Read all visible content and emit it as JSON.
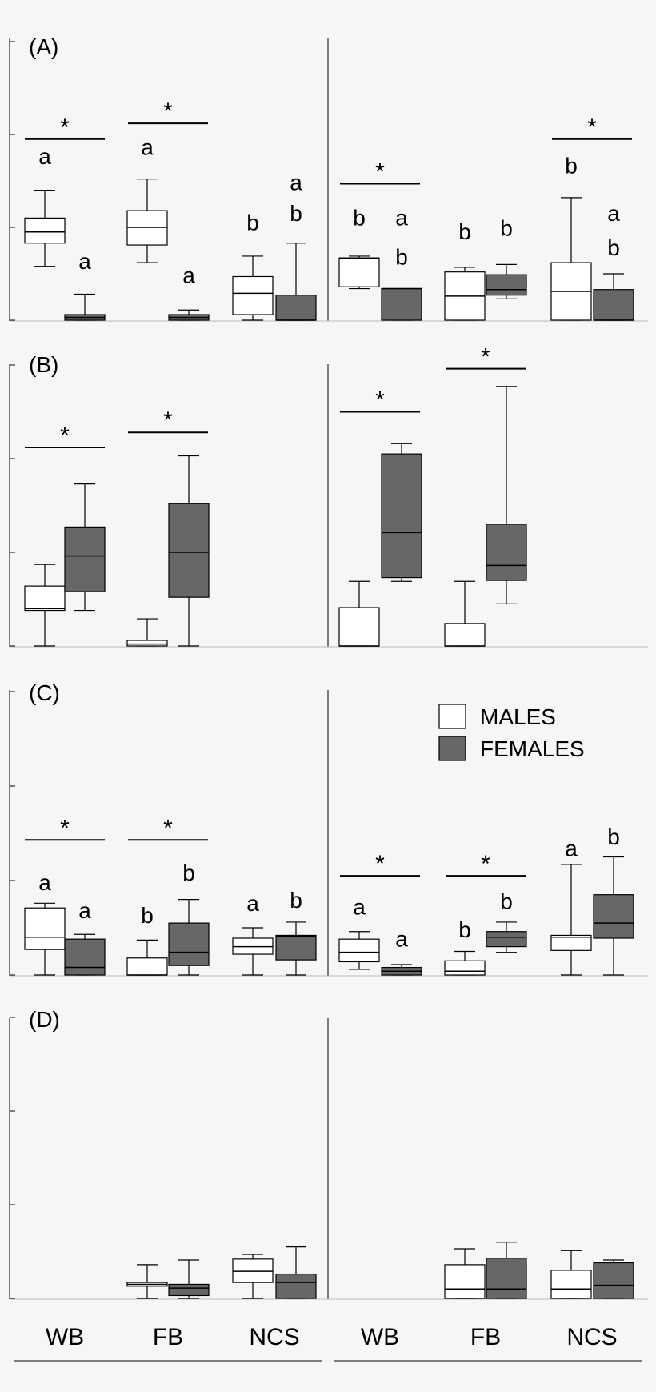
{
  "legend": {
    "placement": "top-right of panel C",
    "items": [
      {
        "label": "MALES",
        "color": "#ffffff"
      },
      {
        "label": "FEMALES",
        "color": "#676767"
      }
    ]
  },
  "x_groups": {
    "left": [
      "WB",
      "FB",
      "NCS"
    ],
    "right": [
      "WB",
      "FB",
      "NCS"
    ]
  },
  "chart_data": [
    {
      "type": "box",
      "panel_label": "(A)",
      "ylim": [
        0,
        3
      ],
      "grid": false,
      "boxes": [
        {
          "side": "left",
          "group": "WB",
          "sex": "MALES",
          "min": 0.58,
          "q1": 0.83,
          "median": 0.95,
          "q3": 1.1,
          "max": 1.4
        },
        {
          "side": "left",
          "group": "WB",
          "sex": "FEMALES",
          "min": 0.0,
          "q1": 0.0,
          "median": 0.03,
          "q3": 0.06,
          "max": 0.28
        },
        {
          "side": "left",
          "group": "FB",
          "sex": "MALES",
          "min": 0.62,
          "q1": 0.81,
          "median": 1.0,
          "q3": 1.18,
          "max": 1.52
        },
        {
          "side": "left",
          "group": "FB",
          "sex": "FEMALES",
          "min": 0.0,
          "q1": 0.0,
          "median": 0.03,
          "q3": 0.06,
          "max": 0.11
        },
        {
          "side": "left",
          "group": "NCS",
          "sex": "MALES",
          "min": 0.0,
          "q1": 0.06,
          "median": 0.29,
          "q3": 0.47,
          "max": 0.69
        },
        {
          "side": "left",
          "group": "NCS",
          "sex": "FEMALES",
          "min": 0.0,
          "q1": 0.0,
          "median": 0.0,
          "q3": 0.27,
          "max": 0.83
        },
        {
          "side": "right",
          "group": "WB",
          "sex": "MALES",
          "min": 0.34,
          "q1": 0.36,
          "median": 0.67,
          "q3": 0.67,
          "max": 0.69
        },
        {
          "side": "right",
          "group": "WB",
          "sex": "FEMALES",
          "min": 0.0,
          "q1": 0.0,
          "median": 0.34,
          "q3": 0.34,
          "max": 0.34
        },
        {
          "side": "right",
          "group": "FB",
          "sex": "MALES",
          "min": 0.0,
          "q1": 0.0,
          "median": 0.26,
          "q3": 0.52,
          "max": 0.57
        },
        {
          "side": "right",
          "group": "FB",
          "sex": "FEMALES",
          "min": 0.23,
          "q1": 0.27,
          "median": 0.33,
          "q3": 0.49,
          "max": 0.6
        },
        {
          "side": "right",
          "group": "NCS",
          "sex": "MALES",
          "min": 0.0,
          "q1": 0.0,
          "median": 0.31,
          "q3": 0.62,
          "max": 1.32
        },
        {
          "side": "right",
          "group": "NCS",
          "sex": "FEMALES",
          "min": 0.0,
          "q1": 0.0,
          "median": 0.0,
          "q3": 0.33,
          "max": 0.5
        }
      ],
      "significance": [
        {
          "side": "left",
          "group": "WB",
          "label": "*",
          "y": 1.95
        },
        {
          "side": "left",
          "group": "FB",
          "label": "*",
          "y": 2.12
        },
        {
          "side": "right",
          "group": "WB",
          "label": "*",
          "y": 1.47
        },
        {
          "side": "right",
          "group": "NCS",
          "label": "*",
          "y": 1.95
        }
      ],
      "letters": [
        {
          "side": "left",
          "group": "WB",
          "sex": "MALES",
          "text": "a",
          "y": 1.68
        },
        {
          "side": "left",
          "group": "WB",
          "sex": "FEMALES",
          "text": "a",
          "y": 0.55
        },
        {
          "side": "left",
          "group": "FB",
          "sex": "MALES",
          "text": "a",
          "y": 1.78
        },
        {
          "side": "left",
          "group": "FB",
          "sex": "FEMALES",
          "text": "a",
          "y": 0.4
        },
        {
          "side": "left",
          "group": "NCS",
          "sex": "MALES",
          "text": "b",
          "y": 0.97
        },
        {
          "side": "left",
          "group": "NCS",
          "sex": "FEMALES",
          "text": "a",
          "y": 1.4
        },
        {
          "side": "left",
          "group": "NCS",
          "sex": "FEMALES",
          "text": "b",
          "y": 1.07
        },
        {
          "side": "right",
          "group": "WB",
          "sex": "MALES",
          "text": "b",
          "y": 1.02
        },
        {
          "side": "right",
          "group": "WB",
          "sex": "FEMALES",
          "text": "a",
          "y": 1.02
        },
        {
          "side": "right",
          "group": "WB",
          "sex": "FEMALES",
          "text": "b",
          "y": 0.6
        },
        {
          "side": "right",
          "group": "FB",
          "sex": "MALES",
          "text": "b",
          "y": 0.87
        },
        {
          "side": "right",
          "group": "FB",
          "sex": "FEMALES",
          "text": "b",
          "y": 0.91
        },
        {
          "side": "right",
          "group": "NCS",
          "sex": "MALES",
          "text": "b",
          "y": 1.58
        },
        {
          "side": "right",
          "group": "NCS",
          "sex": "FEMALES",
          "text": "a",
          "y": 1.07
        },
        {
          "side": "right",
          "group": "NCS",
          "sex": "FEMALES",
          "text": "b",
          "y": 0.7
        }
      ]
    },
    {
      "type": "box",
      "panel_label": "(B)",
      "ylim": [
        0,
        3
      ],
      "grid": false,
      "boxes": [
        {
          "side": "left",
          "group": "WB",
          "sex": "MALES",
          "min": 0.0,
          "q1": 0.38,
          "median": 0.4,
          "q3": 0.64,
          "max": 0.87
        },
        {
          "side": "left",
          "group": "WB",
          "sex": "FEMALES",
          "min": 0.38,
          "q1": 0.58,
          "median": 0.96,
          "q3": 1.27,
          "max": 1.73
        },
        {
          "side": "left",
          "group": "FB",
          "sex": "MALES",
          "min": 0.0,
          "q1": 0.0,
          "median": 0.02,
          "q3": 0.06,
          "max": 0.29
        },
        {
          "side": "left",
          "group": "FB",
          "sex": "FEMALES",
          "min": 0.0,
          "q1": 0.52,
          "median": 1.0,
          "q3": 1.52,
          "max": 2.03
        },
        {
          "side": "right",
          "group": "WB",
          "sex": "MALES",
          "min": 0.0,
          "q1": 0.0,
          "median": 0.0,
          "q3": 0.41,
          "max": 0.69
        },
        {
          "side": "right",
          "group": "WB",
          "sex": "FEMALES",
          "min": 0.69,
          "q1": 0.73,
          "median": 1.21,
          "q3": 2.05,
          "max": 2.16
        },
        {
          "side": "right",
          "group": "FB",
          "sex": "MALES",
          "min": 0.0,
          "q1": 0.0,
          "median": 0.0,
          "q3": 0.24,
          "max": 0.69
        },
        {
          "side": "right",
          "group": "FB",
          "sex": "FEMALES",
          "min": 0.45,
          "q1": 0.7,
          "median": 0.86,
          "q3": 1.3,
          "max": 2.77
        }
      ],
      "significance": [
        {
          "side": "left",
          "group": "WB",
          "label": "*",
          "y": 2.12
        },
        {
          "side": "left",
          "group": "FB",
          "label": "*",
          "y": 2.28
        },
        {
          "side": "right",
          "group": "WB",
          "label": "*",
          "y": 2.5
        },
        {
          "side": "right",
          "group": "FB",
          "label": "*",
          "y": 2.96
        }
      ],
      "letters": []
    },
    {
      "type": "box",
      "panel_label": "(C)",
      "ylim": [
        0,
        3
      ],
      "grid": false,
      "boxes": [
        {
          "side": "left",
          "group": "WB",
          "sex": "MALES",
          "min": 0.0,
          "q1": 0.27,
          "median": 0.4,
          "q3": 0.71,
          "max": 0.76
        },
        {
          "side": "left",
          "group": "WB",
          "sex": "FEMALES",
          "min": 0.0,
          "q1": 0.0,
          "median": 0.08,
          "q3": 0.38,
          "max": 0.43
        },
        {
          "side": "left",
          "group": "FB",
          "sex": "MALES",
          "min": 0.0,
          "q1": 0.0,
          "median": 0.0,
          "q3": 0.18,
          "max": 0.37
        },
        {
          "side": "left",
          "group": "FB",
          "sex": "FEMALES",
          "min": 0.0,
          "q1": 0.1,
          "median": 0.24,
          "q3": 0.55,
          "max": 0.8
        },
        {
          "side": "left",
          "group": "NCS",
          "sex": "MALES",
          "min": 0.0,
          "q1": 0.22,
          "median": 0.3,
          "q3": 0.39,
          "max": 0.5
        },
        {
          "side": "left",
          "group": "NCS",
          "sex": "FEMALES",
          "min": 0.0,
          "q1": 0.16,
          "median": 0.41,
          "q3": 0.42,
          "max": 0.56
        },
        {
          "side": "right",
          "group": "WB",
          "sex": "MALES",
          "min": 0.06,
          "q1": 0.14,
          "median": 0.24,
          "q3": 0.38,
          "max": 0.46
        },
        {
          "side": "right",
          "group": "WB",
          "sex": "FEMALES",
          "min": 0.0,
          "q1": 0.0,
          "median": 0.04,
          "q3": 0.08,
          "max": 0.11
        },
        {
          "side": "right",
          "group": "FB",
          "sex": "MALES",
          "min": 0.0,
          "q1": 0.0,
          "median": 0.04,
          "q3": 0.15,
          "max": 0.25
        },
        {
          "side": "right",
          "group": "FB",
          "sex": "FEMALES",
          "min": 0.24,
          "q1": 0.3,
          "median": 0.4,
          "q3": 0.46,
          "max": 0.56
        },
        {
          "side": "right",
          "group": "NCS",
          "sex": "MALES",
          "min": 0.0,
          "q1": 0.26,
          "median": 0.4,
          "q3": 0.42,
          "max": 1.17
        },
        {
          "side": "right",
          "group": "NCS",
          "sex": "FEMALES",
          "min": 0.0,
          "q1": 0.39,
          "median": 0.55,
          "q3": 0.85,
          "max": 1.25
        }
      ],
      "significance": [
        {
          "side": "left",
          "group": "WB",
          "label": "*",
          "y": 1.43
        },
        {
          "side": "left",
          "group": "FB",
          "label": "*",
          "y": 1.43
        },
        {
          "side": "right",
          "group": "WB",
          "label": "*",
          "y": 1.05
        },
        {
          "side": "right",
          "group": "FB",
          "label": "*",
          "y": 1.05
        }
      ],
      "letters": [
        {
          "side": "left",
          "group": "WB",
          "sex": "MALES",
          "text": "a",
          "y": 0.9
        },
        {
          "side": "left",
          "group": "WB",
          "sex": "FEMALES",
          "text": "a",
          "y": 0.6
        },
        {
          "side": "left",
          "group": "FB",
          "sex": "MALES",
          "text": "b",
          "y": 0.55
        },
        {
          "side": "left",
          "group": "FB",
          "sex": "FEMALES",
          "text": "b",
          "y": 1.0
        },
        {
          "side": "left",
          "group": "NCS",
          "sex": "MALES",
          "text": "a",
          "y": 0.68
        },
        {
          "side": "left",
          "group": "NCS",
          "sex": "FEMALES",
          "text": "b",
          "y": 0.71
        },
        {
          "side": "right",
          "group": "WB",
          "sex": "MALES",
          "text": "a",
          "y": 0.64
        },
        {
          "side": "right",
          "group": "WB",
          "sex": "FEMALES",
          "text": "a",
          "y": 0.3
        },
        {
          "side": "right",
          "group": "FB",
          "sex": "MALES",
          "text": "b",
          "y": 0.4
        },
        {
          "side": "right",
          "group": "FB",
          "sex": "FEMALES",
          "text": "b",
          "y": 0.7
        },
        {
          "side": "right",
          "group": "NCS",
          "sex": "MALES",
          "text": "a",
          "y": 1.26
        },
        {
          "side": "right",
          "group": "NCS",
          "sex": "FEMALES",
          "text": "b",
          "y": 1.38
        }
      ]
    },
    {
      "type": "box",
      "panel_label": "(D)",
      "ylim": [
        0,
        3
      ],
      "grid": false,
      "boxes": [
        {
          "side": "left",
          "group": "FB",
          "sex": "MALES",
          "min": 0.0,
          "q1": 0.13,
          "median": 0.15,
          "q3": 0.17,
          "max": 0.36
        },
        {
          "side": "left",
          "group": "FB",
          "sex": "FEMALES",
          "min": 0.0,
          "q1": 0.03,
          "median": 0.11,
          "q3": 0.15,
          "max": 0.41
        },
        {
          "side": "left",
          "group": "NCS",
          "sex": "MALES",
          "min": 0.0,
          "q1": 0.17,
          "median": 0.29,
          "q3": 0.42,
          "max": 0.47
        },
        {
          "side": "left",
          "group": "NCS",
          "sex": "FEMALES",
          "min": 0.0,
          "q1": 0.0,
          "median": 0.17,
          "q3": 0.26,
          "max": 0.55
        },
        {
          "side": "right",
          "group": "FB",
          "sex": "MALES",
          "min": 0.0,
          "q1": 0.0,
          "median": 0.1,
          "q3": 0.36,
          "max": 0.53
        },
        {
          "side": "right",
          "group": "FB",
          "sex": "FEMALES",
          "min": 0.0,
          "q1": 0.0,
          "median": 0.1,
          "q3": 0.43,
          "max": 0.6
        },
        {
          "side": "right",
          "group": "NCS",
          "sex": "MALES",
          "min": 0.0,
          "q1": 0.0,
          "median": 0.1,
          "q3": 0.3,
          "max": 0.51
        },
        {
          "side": "right",
          "group": "NCS",
          "sex": "FEMALES",
          "min": 0.0,
          "q1": 0.0,
          "median": 0.14,
          "q3": 0.38,
          "max": 0.41
        }
      ],
      "significance": [],
      "letters": []
    }
  ]
}
